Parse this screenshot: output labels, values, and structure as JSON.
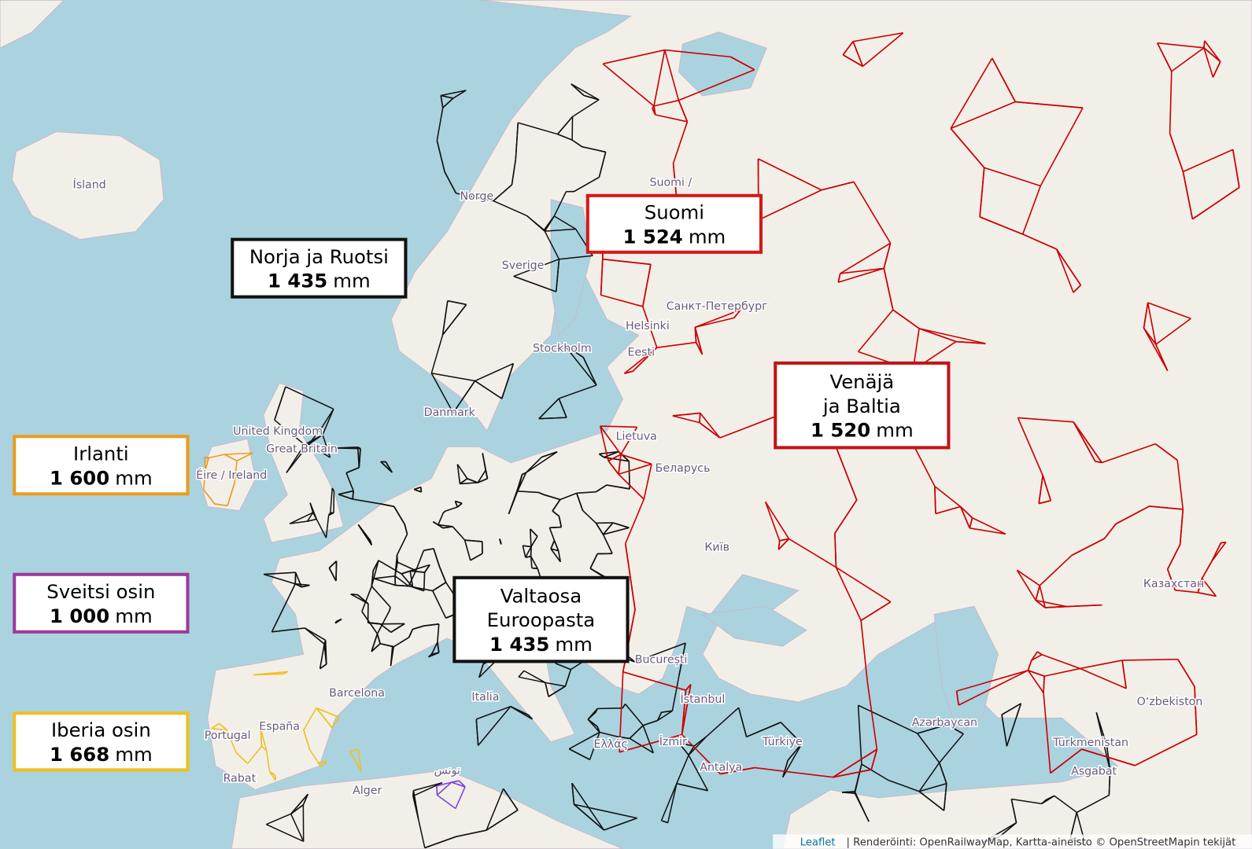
{
  "gauge_labels": [
    {
      "lines": [
        "Norja ja Ruotsi"
      ],
      "gauge": "1 435",
      "unit": "mm",
      "color": "#111111"
    },
    {
      "lines": [
        "Suomi"
      ],
      "gauge": "1 524",
      "unit": "mm",
      "color": "#d11a1a"
    },
    {
      "lines": [
        "Venäjä",
        "ja Baltia"
      ],
      "gauge": "1 520",
      "unit": "mm",
      "color": "#c0141a"
    },
    {
      "lines": [
        "Irlanti"
      ],
      "gauge": "1 600",
      "unit": "mm",
      "color": "#eb9c1c"
    },
    {
      "lines": [
        "Sveitsi osin"
      ],
      "gauge": "1 000",
      "unit": "mm",
      "color": "#9b3a9b"
    },
    {
      "lines": [
        "Iberia osin"
      ],
      "gauge": "1 668",
      "unit": "mm",
      "color": "#f0c020"
    },
    {
      "lines": [
        "Valtaosa",
        "Euroopasta"
      ],
      "gauge": "1 435",
      "unit": "mm",
      "color": "#111111"
    }
  ],
  "places": [
    "Ísland",
    "Norge",
    "Sverige",
    "Suomi /",
    "Helsinki",
    "Stockholm",
    "Eesti",
    "Danmark",
    "United Kingdom",
    "Great Britain",
    "Éire / Ireland",
    "Lietuva",
    "Беларусь",
    "Київ",
    "București",
    "Italia",
    "Barcelona",
    "España",
    "Portugal",
    "İstanbul",
    "Türkiye",
    "Antalya",
    "Ελλάς",
    "İzmir",
    "Azərbaycan",
    "Türkmenistan",
    "Казахстан",
    "Oʻzbekiston",
    "Asgabat",
    "Rabat",
    "Alger",
    "تونس",
    "Санкт-Петербург"
  ],
  "attribution": {
    "link": "Leaflet",
    "text": "| Renderöinti: OpenRailwayMap, Kartta-aineisto © OpenStreetMapin tekijät"
  }
}
